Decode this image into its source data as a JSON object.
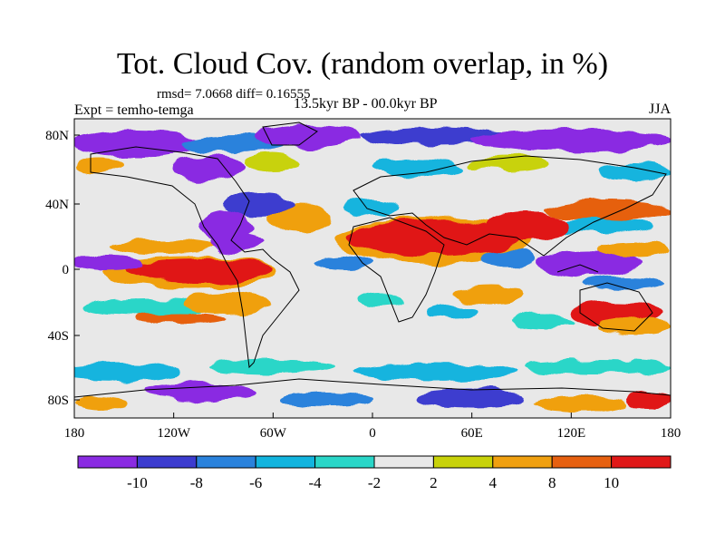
{
  "title": "Tot. Cloud Cov. (random overlap, in %)",
  "stats": "rmsd= 7.0668 diff= 0.16555",
  "period": "13.5kyr BP - 00.0kyr BP",
  "experiment": "Expt = temho-temga",
  "season": "JJA",
  "lat_labels": [
    "80N",
    "40N",
    "0",
    "40S",
    "80S"
  ],
  "lon_labels": [
    "180",
    "120W",
    "60W",
    "0",
    "60E",
    "120E",
    "180"
  ],
  "colorbar": {
    "labels": [
      "-10",
      "-8",
      "-6",
      "-4",
      "-2",
      "2",
      "4",
      "8",
      "10"
    ],
    "colors": [
      "#8a2be2",
      "#3c3ccf",
      "#2a82dc",
      "#12b4de",
      "#2ad6c8",
      "#e8e8e8",
      "#c8d20a",
      "#f0a010",
      "#e66010",
      "#e01818"
    ]
  }
}
